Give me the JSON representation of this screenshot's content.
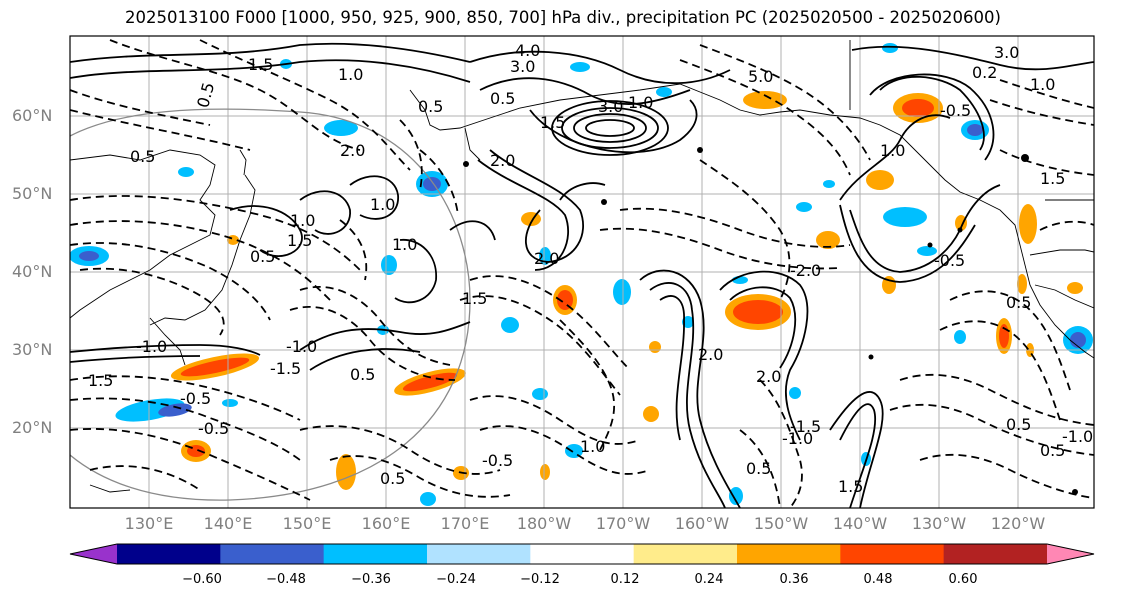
{
  "title": "2025013100 F000 [1000, 950, 925, 900, 850, 700] hPa div., precipitation PC (2025020500 - 2025020600)",
  "map": {
    "lat_labels": [
      "60°N",
      "50°N",
      "40°N",
      "30°N",
      "20°N"
    ],
    "lon_labels": [
      "130°E",
      "140°E",
      "150°E",
      "160°E",
      "170°E",
      "180°W",
      "170°W",
      "160°W",
      "150°W",
      "140°W",
      "130°W",
      "120°W"
    ],
    "contour_labels": [
      "4.0",
      "3.0",
      "1.5",
      "0.5",
      "0.5",
      "1.0",
      "1.5",
      "5.0",
      "1.0",
      "0.5",
      "3.0",
      "2.0",
      "1.0",
      "0.5",
      "1.5",
      "0.5",
      "2.0",
      "1.0",
      "1.5",
      "2.0",
      "1.0",
      "1.5",
      "-0.5",
      "-1.0",
      "-1.5",
      "-1.0",
      "0.5",
      "1.0",
      "0.5",
      "-0.5",
      "-0.5",
      "2.0",
      "-2.0",
      "0.5",
      "-1.0",
      "-1.5",
      "2.0",
      "1.5",
      "0.5",
      "-0.5",
      "1.5",
      "-1.0",
      "0.5",
      "1.0",
      "0.5",
      "-0.5",
      "3.0",
      "0.2",
      "1.0"
    ]
  },
  "colorbar": {
    "ticks": [
      "−0.60",
      "−0.48",
      "−0.36",
      "−0.24",
      "−0.12",
      "0.12",
      "0.24",
      "0.36",
      "0.48",
      "0.60"
    ],
    "colors": [
      "#9932cc",
      "#00008b",
      "#3a5fcd",
      "#00bfff",
      "#b0e2ff",
      "#ffffff",
      "#ffec8b",
      "#ffa500",
      "#ff4500",
      "#b22222",
      "#ff87b4"
    ]
  }
}
